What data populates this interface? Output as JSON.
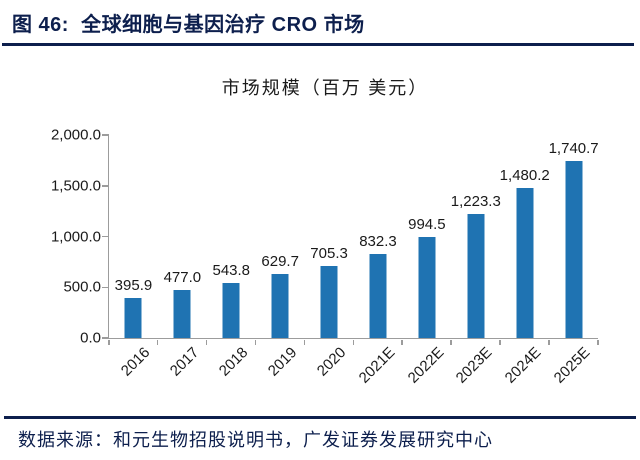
{
  "figure": {
    "title": "图 46:  全球细胞与基因治疗 CRO 市场",
    "source": "数据来源：和元生物招股说明书，广发证券发展研究中心"
  },
  "chart_data": {
    "type": "bar",
    "title": "市场规模（百万 美元）",
    "categories": [
      "2016",
      "2017",
      "2018",
      "2019",
      "2020",
      "2021E",
      "2022E",
      "2023E",
      "2024E",
      "2025E"
    ],
    "values": [
      395.9,
      477.0,
      543.8,
      629.7,
      705.3,
      832.3,
      994.5,
      1223.3,
      1480.2,
      1740.7
    ],
    "value_labels": [
      "395.9",
      "477.0",
      "543.8",
      "629.7",
      "705.3",
      "832.3",
      "994.5",
      "1,223.3",
      "1,480.2",
      "1,740.7"
    ],
    "xlabel": "",
    "ylabel": "",
    "ylim": [
      0,
      2000
    ],
    "y_ticks": [
      {
        "value": 0,
        "label": "0.0"
      },
      {
        "value": 500,
        "label": "500.0"
      },
      {
        "value": 1000,
        "label": "1,000.0"
      },
      {
        "value": 1500,
        "label": "1,500.0"
      },
      {
        "value": 2000,
        "label": "2,000.0"
      }
    ],
    "grid": "off",
    "legend": "none",
    "bar_color": "#1f73b2",
    "axis_color": "#9c9c9c",
    "label_color": "#1a1a1a"
  }
}
